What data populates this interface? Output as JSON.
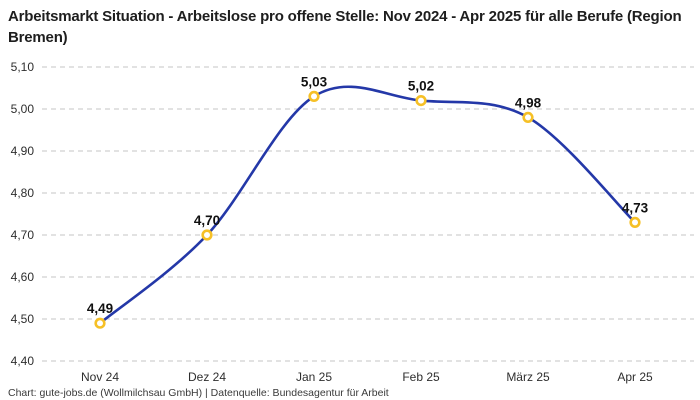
{
  "title": "Arbeitsmarkt Situation - Arbeitslose pro offene Stelle: Nov 2024 - Apr 2025 für alle Berufe (Region Bremen)",
  "footer": "Chart: gute-jobs.de (Wollmilchsau GmbH) | Datenquelle: Bundesagentur für Arbeit",
  "colors": {
    "line": "#2438a8",
    "marker_ring": "#f6c026",
    "marker_fill": "#ffffff",
    "grid": "#c6c6c6",
    "axis_text": "#2e2e2e",
    "data_label": "#111111",
    "title_text": "#1e1e1e"
  },
  "chart_data": {
    "type": "line",
    "title": "Arbeitsmarkt Situation - Arbeitslose pro offene Stelle: Nov 2024 - Apr 2025 für alle Berufe (Region Bremen)",
    "categories": [
      "Nov 24",
      "Dez 24",
      "Jan 25",
      "Feb 25",
      "März 25",
      "Apr 25"
    ],
    "values": [
      4.49,
      4.7,
      5.03,
      5.02,
      4.98,
      4.73
    ],
    "value_labels": [
      "4,49",
      "4,70",
      "5,03",
      "5,02",
      "4,98",
      "4,73"
    ],
    "y_ticks": [
      "5,10",
      "5,00",
      "4,90",
      "4,80",
      "4,70",
      "4,60",
      "4,50",
      "4,40"
    ],
    "y_tick_values": [
      5.1,
      5.0,
      4.9,
      4.8,
      4.7,
      4.6,
      4.5,
      4.4
    ],
    "ylim": [
      4.4,
      5.1
    ],
    "xlabel": "",
    "ylabel": "",
    "grid": "dashed-horizontal",
    "legend": "none",
    "smooth": true,
    "source": "Chart: gute-jobs.de (Wollmilchsau GmbH) | Datenquelle: Bundesagentur für Arbeit"
  }
}
